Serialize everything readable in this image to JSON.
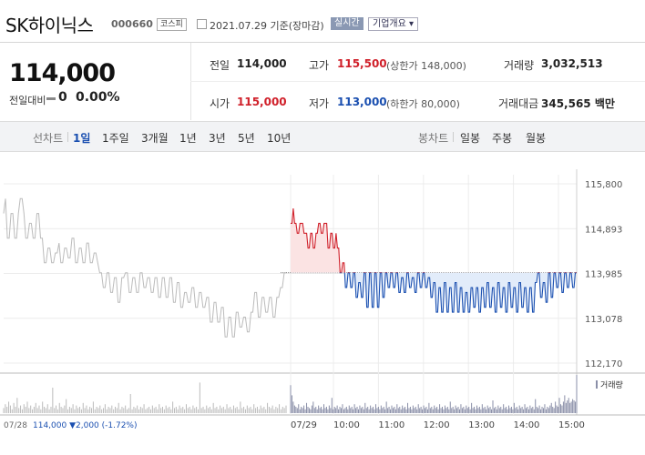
{
  "header": {
    "name": "SK하이닉스",
    "code": "000660",
    "market": "코스피",
    "date": "2021.07.29 기준(장마감)",
    "realtime": "실시간",
    "corp_info": "기업개요 ▾"
  },
  "summary": {
    "price": "114,000",
    "change_label": "전일대비",
    "change_value": "0",
    "change_pct": "0.00%"
  },
  "quotes": {
    "prev_label": "전일",
    "prev_value": "114,000",
    "high_label": "고가",
    "high_value": "115,500",
    "upper_limit": "(상한가 148,000)",
    "volume_label": "거래량",
    "volume_value": "3,032,513",
    "open_label": "시가",
    "open_value": "115,000",
    "low_label": "저가",
    "low_value": "113,000",
    "lower_limit": "(하한가 80,000)",
    "amount_label": "거래대금",
    "amount_value": "345,565 백만"
  },
  "tabs": {
    "line_label": "선차트",
    "line": [
      "1일",
      "1주일",
      "3개월",
      "1년",
      "3년",
      "5년",
      "10년"
    ],
    "active": "1일",
    "candle_label": "봉차트",
    "candle": [
      "일봉",
      "주봉",
      "월봉"
    ]
  },
  "colors": {
    "up": "#d0202a",
    "down": "#1a4fb0",
    "prev_day": "#bbbbbb",
    "up_fill": "#fbe3e3",
    "down_fill": "#e2ecfa",
    "volume": "#8a8fa8"
  },
  "chart_data": {
    "type": "line",
    "y_ticks": [
      "115,800",
      "114,893",
      "113,985",
      "113,078",
      "112,170"
    ],
    "ylim": [
      112170,
      115800
    ],
    "baseline": 114000,
    "x_ticks": [
      "07/29",
      "10:00",
      "11:00",
      "12:00",
      "13:00",
      "14:00",
      "15:00"
    ],
    "prev_day_label": "07/28",
    "prev_day_summary": "114,000 ▼2,000 (-1.72%)",
    "volume_label": "거래량",
    "series": [
      {
        "values": [
          115200,
          115500,
          114700,
          114700,
          115200,
          115200,
          114700,
          114700,
          115200,
          115500,
          115500,
          115200,
          114700,
          114700,
          115000,
          115000,
          114700,
          114700,
          115200,
          115200,
          114700,
          114700,
          114200,
          114200,
          114500,
          114500,
          114200,
          114200,
          114400,
          114400,
          114600,
          114200,
          114200,
          114500,
          114500,
          114300,
          114300,
          114700,
          114700,
          114200,
          114200,
          114500,
          114500,
          114200,
          114200,
          114600,
          114600,
          114200,
          114200,
          114400,
          114400,
          114200,
          114000,
          114000,
          113700,
          113700,
          114000,
          114000,
          113600,
          113600,
          113900,
          113900,
          113400,
          113400,
          113900,
          113900,
          114000,
          114000,
          113600,
          113600,
          113900,
          113900,
          113600,
          113600,
          114000,
          114000,
          113700,
          113700,
          113900,
          113900,
          113600,
          113600,
          113900,
          113900,
          113500,
          113500,
          113900,
          113900,
          113500,
          113500,
          113900,
          113900,
          113400,
          113400,
          113800,
          113800,
          113300,
          113300,
          113600,
          113600,
          113400,
          113400,
          113700,
          113700,
          113300,
          113300,
          113600,
          113600,
          113300,
          113300,
          113500,
          113500,
          113000,
          113000,
          113400,
          113400,
          113000,
          113000,
          113300,
          113300,
          112700,
          112700,
          113100,
          113100,
          112700,
          112700,
          113200,
          113200,
          112900,
          112900,
          113100,
          113100,
          112800,
          112800,
          113200,
          113200,
          113600,
          113600,
          113100,
          113100,
          113500,
          113500,
          113200,
          113200,
          113500,
          113500,
          113100,
          113100,
          113500,
          113500,
          113700,
          113700,
          114000,
          114000
        ]
      },
      {
        "values": [
          115000,
          115000,
          115300,
          115000,
          115000,
          114800,
          114800,
          115000,
          115000,
          115000,
          114800,
          114800,
          114800,
          114500,
          114500,
          114800,
          114800,
          114500,
          114500,
          114800,
          114800,
          115000,
          115000,
          114800,
          114800,
          115000,
          115000,
          115000,
          114500,
          114500,
          114800,
          114800,
          114500,
          114500,
          114800,
          114500,
          114500,
          114000,
          114000,
          114200,
          114200,
          113700,
          113700,
          114000,
          114000,
          113700,
          113700,
          114000,
          114000,
          113500,
          113500,
          113800,
          113800,
          113500,
          113500,
          114000,
          114000,
          113300,
          113300,
          114000,
          114000,
          113300,
          113300,
          114000,
          114000,
          113300,
          113300,
          114000,
          114000,
          113500,
          113500,
          114000,
          114000,
          113700,
          113700,
          114000,
          114000,
          113700,
          113700,
          114000,
          114000,
          113600,
          113600,
          113900,
          113900,
          113600,
          113600,
          114000,
          114000,
          113700,
          113700,
          113900,
          113900,
          113600,
          113600,
          114000,
          114000,
          113700,
          113700,
          114000,
          114000,
          113700,
          113700,
          113900,
          113900,
          113500,
          113500,
          113800,
          113800,
          113200,
          113200,
          113700,
          113700,
          113200,
          113200,
          113800,
          113800,
          113200,
          113200,
          113700,
          113700,
          113200,
          113200,
          113800,
          113800,
          113200,
          113200,
          113700,
          113700,
          113200,
          113200,
          113600,
          113600,
          113200,
          113200,
          113700,
          113700,
          113300,
          113300,
          113700,
          113700,
          113200,
          113200,
          113700,
          113700,
          113300,
          113300,
          113800,
          113800,
          113300,
          113300,
          113700,
          113700,
          113200,
          113200,
          113800,
          113800,
          113300,
          113300,
          113700,
          113700,
          113200,
          113200,
          113800,
          113800,
          113300,
          113300,
          113700,
          113700,
          113200,
          113200,
          113800,
          113800,
          113300,
          113300,
          113700,
          113700,
          113200,
          113200,
          113700,
          113700,
          113200,
          113200,
          113800,
          113800,
          114000,
          114000,
          113500,
          113500,
          113800,
          113800,
          113400,
          113400,
          114000,
          114000,
          113500,
          113500,
          114000,
          114000,
          113700,
          113700,
          114000,
          114000,
          113600,
          113600,
          114000,
          114000,
          113700,
          113700,
          114000,
          114000,
          113700,
          113700,
          114000,
          114000
        ]
      }
    ],
    "volume": {
      "prev": [
        4,
        7,
        5,
        9,
        6,
        3,
        8,
        5,
        12,
        4,
        6,
        3,
        7,
        5,
        9,
        4,
        6,
        3,
        5,
        8,
        4,
        6,
        3,
        9,
        5,
        4,
        7,
        3,
        5,
        20,
        4,
        6,
        3,
        8,
        5,
        4,
        6,
        11,
        3,
        5,
        4,
        7,
        3,
        6,
        4,
        5,
        3,
        8,
        4,
        6,
        3,
        5,
        4,
        9,
        3,
        5,
        4,
        6,
        3,
        4,
        7,
        3,
        5,
        4,
        6,
        3,
        5,
        4,
        8,
        3,
        5,
        4,
        6,
        3,
        4,
        15,
        3,
        5,
        4,
        6,
        3,
        5,
        4,
        7,
        3,
        4,
        5,
        3,
        6,
        4,
        5,
        3,
        7,
        4,
        5,
        3,
        6,
        4,
        5,
        3,
        9,
        4,
        5,
        3,
        6,
        4,
        5,
        3,
        7,
        4,
        5,
        3,
        6,
        4,
        5,
        3,
        24,
        4,
        5,
        3,
        6,
        4,
        5,
        3,
        8,
        4,
        5,
        3,
        6,
        4,
        5,
        3,
        7,
        4,
        5,
        3,
        6,
        4,
        5,
        3,
        9,
        4,
        5,
        3,
        6,
        4,
        5,
        3,
        7,
        4,
        5,
        3,
        6,
        4,
        5,
        3,
        8,
        5,
        4,
        6,
        3,
        5,
        4,
        7,
        3,
        5,
        4,
        6
      ],
      "today": [
        22,
        14,
        9,
        6,
        5,
        4,
        7,
        3,
        5,
        4,
        6,
        3,
        8,
        5,
        4,
        3,
        6,
        9,
        4,
        5,
        3,
        6,
        4,
        5,
        3,
        7,
        4,
        5,
        3,
        6,
        4,
        12,
        3,
        5,
        4,
        6,
        3,
        5,
        4,
        7,
        3,
        4,
        5,
        3,
        6,
        4,
        5,
        3,
        7,
        4,
        5,
        3,
        6,
        4,
        5,
        3,
        8,
        4,
        5,
        3,
        6,
        4,
        5,
        3,
        7,
        4,
        5,
        3,
        6,
        4,
        5,
        3,
        9,
        4,
        5,
        3,
        6,
        4,
        5,
        3,
        7,
        4,
        5,
        3,
        6,
        4,
        5,
        3,
        8,
        4,
        5,
        3,
        6,
        4,
        5,
        3,
        7,
        4,
        5,
        3,
        6,
        4,
        5,
        3,
        8,
        4,
        5,
        3,
        6,
        4,
        5,
        3,
        7,
        4,
        5,
        3,
        6,
        4,
        5,
        3,
        9,
        4,
        5,
        3,
        6,
        4,
        5,
        3,
        7,
        4,
        5,
        3,
        6,
        4,
        5,
        3,
        8,
        4,
        5,
        3,
        6,
        4,
        5,
        3,
        7,
        4,
        5,
        3,
        6,
        4,
        5,
        3,
        10,
        4,
        5,
        3,
        6,
        4,
        5,
        3,
        7,
        4,
        5,
        3,
        6,
        4,
        5,
        3,
        8,
        4,
        5,
        3,
        6,
        4,
        5,
        3,
        7,
        4,
        5,
        3,
        6,
        4,
        5,
        3,
        11,
        5,
        4,
        6,
        3,
        5,
        4,
        7,
        3,
        5,
        4,
        6,
        8,
        5,
        4,
        9,
        6,
        5,
        12,
        7,
        6,
        9,
        14,
        8,
        10,
        12,
        8,
        9,
        11,
        10,
        9,
        30
      ]
    }
  }
}
